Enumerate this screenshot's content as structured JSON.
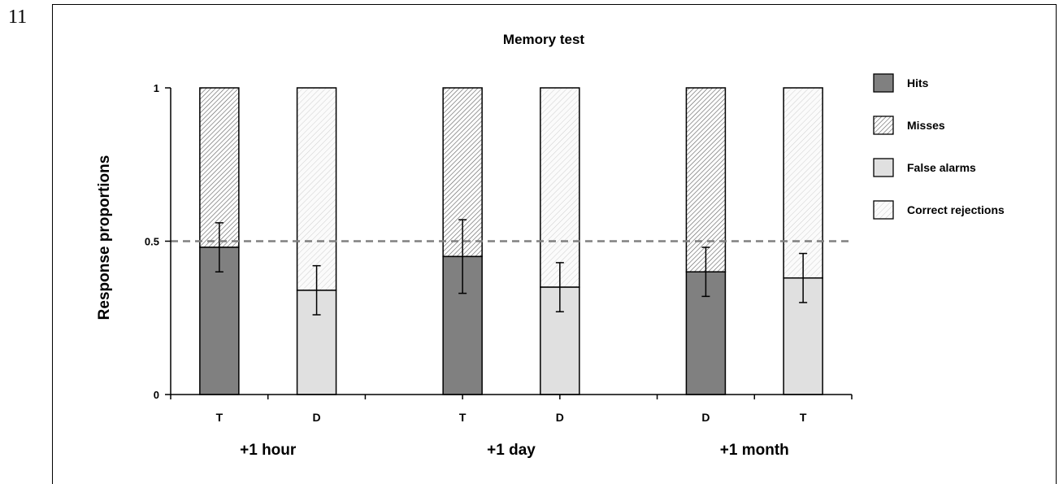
{
  "page": {
    "number": "11"
  },
  "chart_data": {
    "type": "bar",
    "stacked": true,
    "title": "Memory test",
    "ylabel": "Response  proportions",
    "xlabel": "",
    "ylim": [
      0,
      1
    ],
    "yticks": [
      "0",
      "0.5",
      "1"
    ],
    "ytick_values": [
      0,
      0.5,
      1
    ],
    "reference_line": {
      "value": 0.5,
      "style": "dashed",
      "color": "#808080"
    },
    "groups": [
      "+1 hour",
      "+1 day",
      "+1 month"
    ],
    "categories": [
      "T",
      "D",
      "T",
      "D",
      "D",
      "T"
    ],
    "category_group": [
      0,
      0,
      1,
      1,
      2,
      2
    ],
    "bars": [
      {
        "label": "T",
        "lower_series": "Hits",
        "upper_series": "Misses",
        "lower_value": 0.48,
        "error": [
          0.4,
          0.56
        ]
      },
      {
        "label": "D",
        "lower_series": "False alarms",
        "upper_series": "Correct rejections",
        "lower_value": 0.34,
        "error": [
          0.26,
          0.42
        ]
      },
      {
        "label": "T",
        "lower_series": "Hits",
        "upper_series": "Misses",
        "lower_value": 0.45,
        "error": [
          0.33,
          0.57
        ]
      },
      {
        "label": "D",
        "lower_series": "False alarms",
        "upper_series": "Correct rejections",
        "lower_value": 0.35,
        "error": [
          0.27,
          0.43
        ]
      },
      {
        "label": "D",
        "lower_series": "Hits",
        "upper_series": "Misses",
        "lower_value": 0.4,
        "error": [
          0.32,
          0.48
        ]
      },
      {
        "label": "T",
        "lower_series": "False alarms",
        "upper_series": "Correct rejections",
        "lower_value": 0.38,
        "error": [
          0.3,
          0.46
        ]
      }
    ],
    "series": [
      {
        "name": "Hits",
        "fill": "#808080",
        "pattern": "solid"
      },
      {
        "name": "Misses",
        "fill": "#ffffff",
        "pattern": "dense-diagonal"
      },
      {
        "name": "False alarms",
        "fill": "#e0e0e0",
        "pattern": "solid"
      },
      {
        "name": "Correct rejections",
        "fill": "#f4f4f4",
        "pattern": "light-diagonal"
      }
    ],
    "legend": {
      "position": "right"
    },
    "grid": false
  }
}
